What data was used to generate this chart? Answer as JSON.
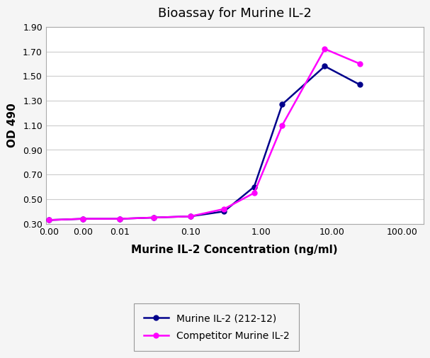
{
  "title": "Bioassay for Murine IL-2",
  "xlabel": "Murine IL-2 Concentration (ng/ml)",
  "ylabel": "OD 490",
  "series1_name": "Murine IL-2 (212-12)",
  "series1_color": "#00008B",
  "series1_x": [
    0.001,
    0.003,
    0.01,
    0.03,
    0.1,
    0.3,
    0.8,
    2.0,
    8.0,
    25.0
  ],
  "series1_y": [
    0.33,
    0.34,
    0.34,
    0.35,
    0.36,
    0.4,
    0.6,
    1.27,
    1.58,
    1.43
  ],
  "series2_name": "Competitor Murine IL-2",
  "series2_color": "#FF00FF",
  "series2_x": [
    0.001,
    0.003,
    0.01,
    0.03,
    0.1,
    0.3,
    0.8,
    2.0,
    8.0,
    25.0
  ],
  "series2_y": [
    0.33,
    0.34,
    0.34,
    0.35,
    0.36,
    0.42,
    0.55,
    1.1,
    1.72,
    1.6
  ],
  "ylim": [
    0.3,
    1.9
  ],
  "yticks": [
    0.3,
    0.5,
    0.7,
    0.9,
    1.1,
    1.3,
    1.5,
    1.7,
    1.9
  ],
  "xtick_positions": [
    0.001,
    0.003,
    0.01,
    0.1,
    1.0,
    10.0,
    100.0
  ],
  "xtick_labels": [
    "0.00",
    "0.00",
    "0.01",
    "0.10",
    "1.00",
    "10.00",
    "100.00"
  ],
  "xlim_min": 0.0009,
  "xlim_max": 200.0,
  "background_color": "#f5f5f5",
  "plot_bg_color": "#ffffff",
  "grid_color": "#cccccc",
  "marker": "o",
  "markersize": 5,
  "linewidth": 1.8,
  "title_fontsize": 13,
  "label_fontsize": 11,
  "tick_fontsize": 9,
  "legend_fontsize": 10
}
